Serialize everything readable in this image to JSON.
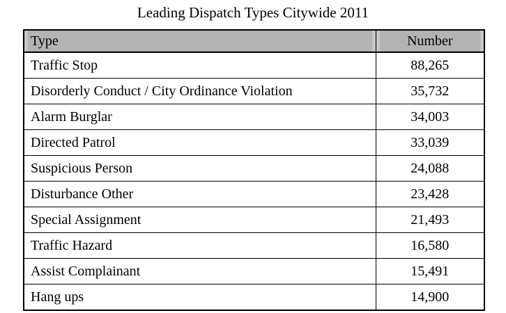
{
  "title": "Leading Dispatch Types Citywide 2011",
  "colors": {
    "header_bg": "#b3b3b3",
    "border": "#000000",
    "text": "#000000",
    "background": "#ffffff"
  },
  "table": {
    "columns": {
      "type": "Type",
      "number": "Number"
    },
    "rows": [
      {
        "type": "Traffic Stop",
        "number": "88,265"
      },
      {
        "type": "Disorderly Conduct / City Ordinance Violation",
        "number": "35,732"
      },
      {
        "type": "Alarm Burglar",
        "number": "34,003"
      },
      {
        "type": "Directed Patrol",
        "number": "33,039"
      },
      {
        "type": "Suspicious Person",
        "number": "24,088"
      },
      {
        "type": "Disturbance Other",
        "number": "23,428"
      },
      {
        "type": "Special Assignment",
        "number": "21,493"
      },
      {
        "type": "Traffic Hazard",
        "number": "16,580"
      },
      {
        "type": "Assist Complainant",
        "number": "15,491"
      },
      {
        "type": "Hang ups",
        "number": "14,900"
      }
    ]
  }
}
